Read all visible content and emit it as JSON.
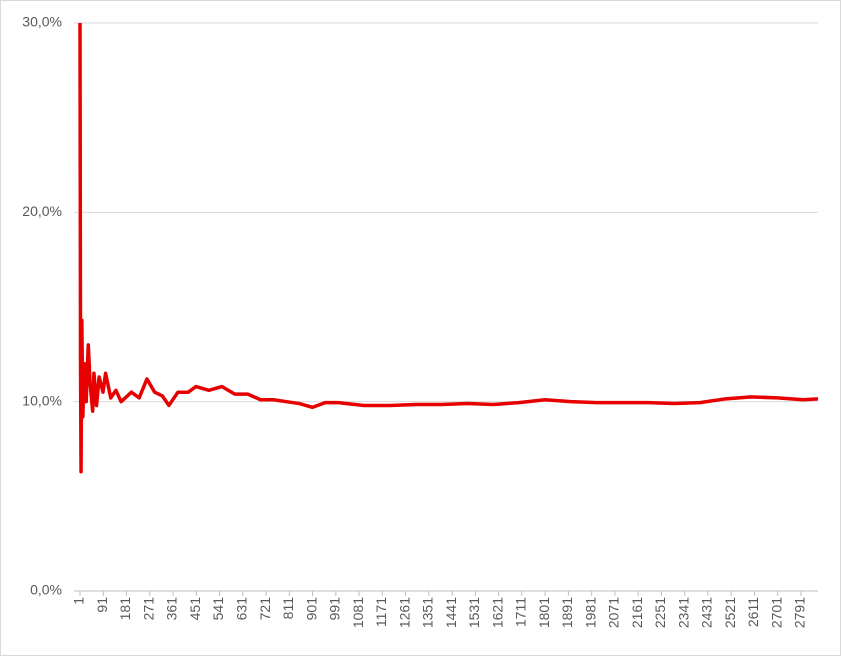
{
  "chart_data": {
    "type": "line",
    "x": [
      1,
      3,
      5,
      8,
      12,
      18,
      25,
      33,
      40,
      50,
      55,
      65,
      75,
      90,
      100,
      120,
      140,
      160,
      200,
      230,
      260,
      290,
      320,
      345,
      380,
      420,
      450,
      500,
      550,
      600,
      650,
      700,
      750,
      800,
      850,
      900,
      950,
      1000,
      1100,
      1200,
      1300,
      1400,
      1500,
      1600,
      1700,
      1800,
      1900,
      2000,
      2100,
      2200,
      2300,
      2400,
      2500,
      2600,
      2700,
      2800,
      2857
    ],
    "values": [
      30,
      12,
      6.3,
      14.3,
      9.2,
      12,
      10,
      13,
      11,
      9.5,
      11.5,
      9.8,
      11.3,
      10.5,
      11.5,
      10.2,
      10.6,
      10.0,
      10.5,
      10.2,
      11.2,
      10.5,
      10.3,
      9.8,
      10.5,
      10.5,
      10.8,
      10.6,
      10.8,
      10.4,
      10.4,
      10.1,
      10.1,
      10.0,
      9.9,
      9.7,
      9.95,
      9.95,
      9.8,
      9.8,
      9.85,
      9.85,
      9.9,
      9.85,
      9.95,
      10.1,
      10.0,
      9.95,
      9.95,
      9.95,
      9.9,
      9.95,
      10.15,
      10.25,
      10.2,
      10.1,
      10.15
    ],
    "color": "#e60000",
    "xlim": [
      1,
      2857
    ],
    "xticks": [
      1,
      91,
      181,
      271,
      361,
      451,
      541,
      631,
      721,
      811,
      901,
      991,
      1081,
      1171,
      1261,
      1351,
      1441,
      1531,
      1621,
      1711,
      1801,
      1891,
      1981,
      2071,
      2161,
      2251,
      2341,
      2431,
      2521,
      2611,
      2701,
      2791
    ],
    "ylim": [
      0,
      30
    ],
    "yticks": [
      {
        "value": 0,
        "label": "0,0%"
      },
      {
        "value": 10,
        "label": "10,0%"
      },
      {
        "value": 20,
        "label": "20,0%"
      },
      {
        "value": 30,
        "label": "30,0%"
      }
    ],
    "grid": true
  }
}
